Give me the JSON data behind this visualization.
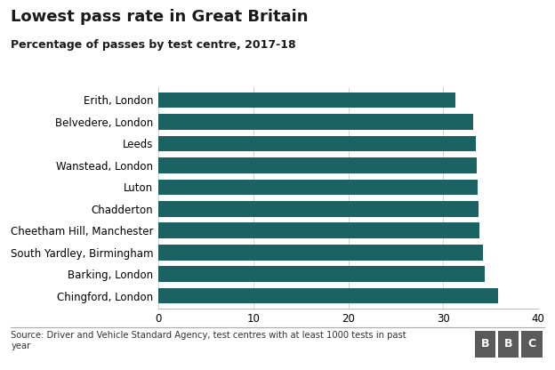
{
  "title": "Lowest pass rate in Great Britain",
  "subtitle": "Percentage of passes by test centre, 2017-18",
  "categories": [
    "Chingford, London",
    "Barking, London",
    "South Yardley, Birmingham",
    "Cheetham Hill, Manchester",
    "Chadderton",
    "Luton",
    "Wanstead, London",
    "Leeds",
    "Belvedere, London",
    "Erith, London"
  ],
  "values": [
    35.8,
    34.4,
    34.2,
    33.8,
    33.7,
    33.6,
    33.5,
    33.4,
    33.1,
    31.3
  ],
  "bar_color": "#1a6362",
  "xlim": [
    0,
    40
  ],
  "xticks": [
    0,
    10,
    20,
    30,
    40
  ],
  "footnote": "Source: Driver and Vehicle Standard Agency, test centres with at least 1000 tests in past\nyear",
  "background_color": "#ffffff",
  "title_fontsize": 13,
  "subtitle_fontsize": 9,
  "tick_fontsize": 8.5,
  "xtick_fontsize": 8.5
}
